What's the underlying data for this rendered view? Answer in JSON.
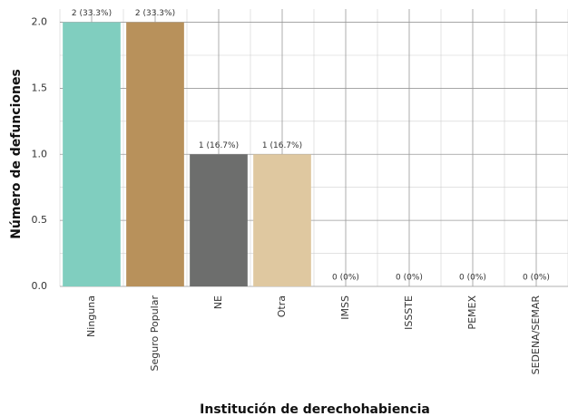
{
  "chart_data": {
    "type": "bar",
    "x_label": "Institución de derechohabiencia",
    "y_label": "Número de defunciones",
    "categories": [
      "Ninguna",
      "Seguro Popular",
      "NE",
      "Otra",
      "IMSS",
      "ISSSTE",
      "PEMEX",
      "SEDENA/SEMAR"
    ],
    "values": [
      2,
      2,
      1,
      1,
      0,
      0,
      0,
      0
    ],
    "value_labels": [
      "2 (33.3%)",
      "2 (33.3%)",
      "1 (16.7%)",
      "1 (16.7%)",
      "0 (0%)",
      "0 (0%)",
      "0 (0%)",
      "0 (0%)"
    ],
    "colors": [
      "#80cebf",
      "#b8915b",
      "#6d6e6d",
      "#dfc8a0",
      "#cccccc",
      "#cccccc",
      "#cccccc",
      "#cccccc"
    ],
    "ylim": [
      0,
      2.1
    ],
    "yticks": [
      {
        "value": 0,
        "label": "0.0"
      },
      0.5,
      {
        "value": 1,
        "label": "1.0"
      },
      1.5,
      {
        "value": 2,
        "label": "2.0"
      }
    ],
    "grid": true
  }
}
